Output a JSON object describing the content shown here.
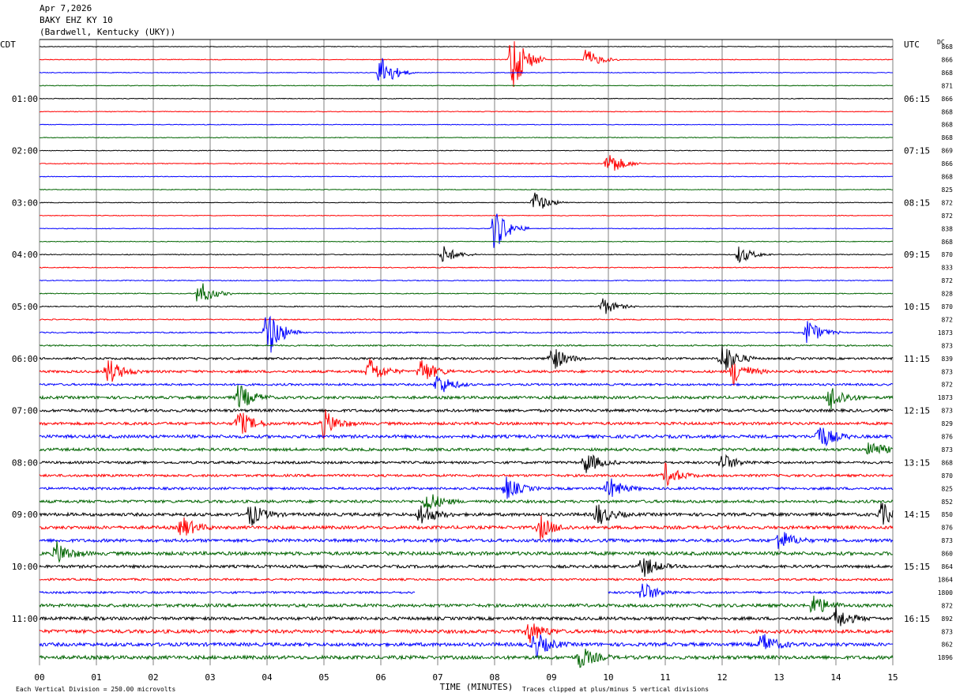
{
  "header": {
    "date": "Apr 7,2026",
    "station": "BAKY EHZ KY 10",
    "location": "(Bardwell, Kentucky (UKY))"
  },
  "axes": {
    "left_zone": "CDT",
    "right_zone": "UTC",
    "dc_label": "DC",
    "xlabel": "TIME (MINUTES)",
    "x_ticks": [
      "00",
      "01",
      "02",
      "03",
      "04",
      "05",
      "06",
      "07",
      "08",
      "09",
      "10",
      "11",
      "12",
      "13",
      "14",
      "15"
    ]
  },
  "footer": {
    "scale": "Each Vertical Division =  250.00 microvolts",
    "clip": "Traces clipped at plus/minus 5 vertical divisions"
  },
  "colors": {
    "black": "#000000",
    "red": "#ff0000",
    "blue": "#0000ff",
    "green": "#006400",
    "grid": "#808080"
  },
  "chart_data": {
    "type": "line",
    "x_range_minutes": [
      0,
      15
    ],
    "trace_count": 48,
    "trace_color_cycle": [
      "black",
      "red",
      "blue",
      "green"
    ],
    "left_hour_labels": [
      {
        "trace": 4,
        "text": "01:00"
      },
      {
        "trace": 8,
        "text": "02:00"
      },
      {
        "trace": 12,
        "text": "03:00"
      },
      {
        "trace": 16,
        "text": "04:00"
      },
      {
        "trace": 20,
        "text": "05:00"
      },
      {
        "trace": 24,
        "text": "06:00"
      },
      {
        "trace": 28,
        "text": "07:00"
      },
      {
        "trace": 32,
        "text": "08:00"
      },
      {
        "trace": 36,
        "text": "09:00"
      },
      {
        "trace": 40,
        "text": "10:00"
      },
      {
        "trace": 44,
        "text": "11:00"
      }
    ],
    "right_hour_labels": [
      {
        "trace": 4,
        "text": "06:15"
      },
      {
        "trace": 8,
        "text": "07:15"
      },
      {
        "trace": 12,
        "text": "08:15"
      },
      {
        "trace": 16,
        "text": "09:15"
      },
      {
        "trace": 20,
        "text": "10:15"
      },
      {
        "trace": 24,
        "text": "11:15"
      },
      {
        "trace": 28,
        "text": "12:15"
      },
      {
        "trace": 32,
        "text": "13:15"
      },
      {
        "trace": 36,
        "text": "14:15"
      },
      {
        "trace": 40,
        "text": "15:15"
      },
      {
        "trace": 44,
        "text": "16:15"
      }
    ],
    "dc_values": [
      "868",
      "866",
      "868",
      "871",
      "866",
      "868",
      "868",
      "868",
      "869",
      "866",
      "868",
      "825",
      "872",
      "872",
      "838",
      "868",
      "870",
      "833",
      "872",
      "828",
      "870",
      "872",
      "1873",
      "873",
      "839",
      "873",
      "872",
      "1873",
      "873",
      "829",
      "876",
      "873",
      "868",
      "870",
      "825",
      "852",
      "850",
      "876",
      "873",
      "860",
      "864",
      "1864",
      "1800",
      "872",
      "892",
      "873",
      "862",
      "1896"
    ],
    "trace_amplitude_level": [
      0.2,
      0.2,
      0.2,
      0.2,
      0.2,
      0.2,
      0.2,
      0.2,
      0.2,
      0.25,
      0.2,
      0.2,
      0.2,
      0.2,
      0.2,
      0.2,
      0.25,
      0.25,
      0.25,
      0.25,
      0.3,
      0.3,
      0.35,
      0.4,
      0.6,
      0.7,
      0.6,
      0.8,
      0.8,
      0.8,
      0.9,
      0.8,
      0.7,
      0.7,
      0.7,
      0.8,
      0.9,
      0.9,
      0.9,
      1.0,
      0.8,
      0.6,
      0.6,
      0.9,
      0.9,
      1.0,
      1.0,
      1.0
    ],
    "events": [
      {
        "trace": 1,
        "minute": 9.6,
        "strength": 2.5
      },
      {
        "trace": 2,
        "minute": 6.0,
        "strength": 4
      },
      {
        "trace": 1,
        "minute": 8.3,
        "strength": 8
      },
      {
        "trace": 9,
        "minute": 10.0,
        "strength": 3
      },
      {
        "trace": 12,
        "minute": 8.7,
        "strength": 2.5
      },
      {
        "trace": 14,
        "minute": 8.0,
        "strength": 5
      },
      {
        "trace": 16,
        "minute": 7.1,
        "strength": 2
      },
      {
        "trace": 16,
        "minute": 12.3,
        "strength": 2
      },
      {
        "trace": 19,
        "minute": 2.8,
        "strength": 3
      },
      {
        "trace": 20,
        "minute": 9.9,
        "strength": 2
      },
      {
        "trace": 22,
        "minute": 4.0,
        "strength": 6
      },
      {
        "trace": 22,
        "minute": 13.5,
        "strength": 3
      },
      {
        "trace": 24,
        "minute": 9.0,
        "strength": 3
      },
      {
        "trace": 24,
        "minute": 12.0,
        "strength": 4
      },
      {
        "trace": 25,
        "minute": 1.2,
        "strength": 3
      },
      {
        "trace": 25,
        "minute": 5.8,
        "strength": 3
      },
      {
        "trace": 25,
        "minute": 6.7,
        "strength": 3
      },
      {
        "trace": 25,
        "minute": 12.2,
        "strength": 3
      },
      {
        "trace": 26,
        "minute": 7.0,
        "strength": 2.5
      },
      {
        "trace": 27,
        "minute": 3.5,
        "strength": 3
      },
      {
        "trace": 27,
        "minute": 13.9,
        "strength": 3
      },
      {
        "trace": 29,
        "minute": 3.5,
        "strength": 3
      },
      {
        "trace": 29,
        "minute": 5.0,
        "strength": 3
      },
      {
        "trace": 30,
        "minute": 13.7,
        "strength": 3
      },
      {
        "trace": 31,
        "minute": 14.6,
        "strength": 2
      },
      {
        "trace": 32,
        "minute": 9.6,
        "strength": 2.5
      },
      {
        "trace": 32,
        "minute": 12.0,
        "strength": 2
      },
      {
        "trace": 33,
        "minute": 11.0,
        "strength": 2.5
      },
      {
        "trace": 34,
        "minute": 8.2,
        "strength": 2.5
      },
      {
        "trace": 34,
        "minute": 10.0,
        "strength": 2.5
      },
      {
        "trace": 35,
        "minute": 6.8,
        "strength": 2.5
      },
      {
        "trace": 36,
        "minute": 3.7,
        "strength": 2.5
      },
      {
        "trace": 36,
        "minute": 6.7,
        "strength": 2.5
      },
      {
        "trace": 36,
        "minute": 9.8,
        "strength": 2.5
      },
      {
        "trace": 36,
        "minute": 14.8,
        "strength": 2.5
      },
      {
        "trace": 37,
        "minute": 2.5,
        "strength": 2.5
      },
      {
        "trace": 37,
        "minute": 8.8,
        "strength": 2.5
      },
      {
        "trace": 38,
        "minute": 13.0,
        "strength": 2.5
      },
      {
        "trace": 39,
        "minute": 0.3,
        "strength": 2.5
      },
      {
        "trace": 40,
        "minute": 10.6,
        "strength": 2.5
      },
      {
        "trace": 42,
        "minute": 10.6,
        "strength": 2.5
      },
      {
        "trace": 43,
        "minute": 13.6,
        "strength": 2.5
      },
      {
        "trace": 44,
        "minute": 14.0,
        "strength": 2.5
      },
      {
        "trace": 45,
        "minute": 8.6,
        "strength": 2.5
      },
      {
        "trace": 46,
        "minute": 8.7,
        "strength": 3
      },
      {
        "trace": 46,
        "minute": 12.7,
        "strength": 2.5
      },
      {
        "trace": 47,
        "minute": 9.5,
        "strength": 2.5
      }
    ],
    "gaps": [
      {
        "trace": 42,
        "from_minute": 6.6,
        "to_minute": 10.0
      }
    ]
  }
}
